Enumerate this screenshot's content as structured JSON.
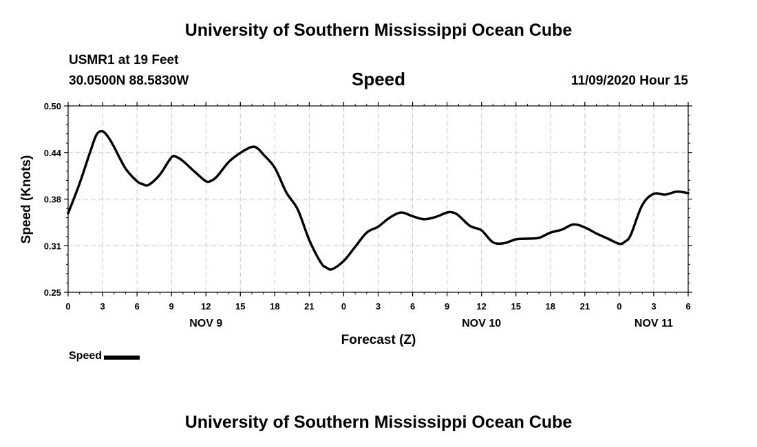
{
  "header": {
    "title": "University of Southern Mississippi Ocean Cube",
    "station": "USMR1 at 19 Feet",
    "coordinates": "30.0500N 88.5830W",
    "variable": "Speed",
    "datetime": "11/09/2020 Hour 15"
  },
  "footer": {
    "title": "University of Southern Mississippi Ocean Cube"
  },
  "chart_data": {
    "type": "line",
    "ylabel": "Speed (Knots)",
    "xlabel": "Forecast (Z)",
    "ylim": [
      0.25,
      0.5
    ],
    "y_ticks": [
      "0.50",
      "0.44",
      "0.38",
      "0.31",
      "0.25"
    ],
    "y_tick_values": [
      0.5,
      0.4375,
      0.375,
      0.3125,
      0.25
    ],
    "xlim": [
      0,
      54
    ],
    "x_ticks": [
      {
        "x": 0,
        "label": "0"
      },
      {
        "x": 3,
        "label": "3"
      },
      {
        "x": 6,
        "label": "6"
      },
      {
        "x": 9,
        "label": "9"
      },
      {
        "x": 12,
        "label": "12"
      },
      {
        "x": 15,
        "label": "15"
      },
      {
        "x": 18,
        "label": "18"
      },
      {
        "x": 21,
        "label": "21"
      },
      {
        "x": 24,
        "label": "0"
      },
      {
        "x": 27,
        "label": "3"
      },
      {
        "x": 30,
        "label": "6"
      },
      {
        "x": 33,
        "label": "9"
      },
      {
        "x": 36,
        "label": "12"
      },
      {
        "x": 39,
        "label": "15"
      },
      {
        "x": 42,
        "label": "18"
      },
      {
        "x": 45,
        "label": "21"
      },
      {
        "x": 48,
        "label": "0"
      },
      {
        "x": 51,
        "label": "3"
      },
      {
        "x": 54,
        "label": "6"
      }
    ],
    "day_labels": [
      {
        "x": 12,
        "label": "NOV 9"
      },
      {
        "x": 36,
        "label": "NOV 10"
      },
      {
        "x": 51,
        "label": "NOV 11"
      }
    ],
    "grid": true,
    "legend": {
      "placement": "bottom-left"
    },
    "series": [
      {
        "name": "Speed",
        "color": "#000000",
        "x": [
          0,
          1,
          2,
          2.5,
          3,
          3.5,
          4,
          5,
          6,
          6.5,
          7,
          8,
          9,
          9.5,
          10,
          11,
          12,
          12.5,
          13,
          14,
          15,
          16,
          16.5,
          17,
          18,
          19,
          20,
          21,
          22,
          22.5,
          23,
          24,
          25,
          26,
          27,
          28,
          29,
          30,
          31,
          32,
          33,
          33.5,
          34,
          35,
          36,
          37,
          38,
          39,
          40,
          41,
          42,
          43,
          44,
          45,
          46,
          47,
          48,
          48.5,
          49,
          50,
          51,
          52,
          53,
          54
        ],
        "values": [
          0.356,
          0.396,
          0.442,
          0.462,
          0.466,
          0.458,
          0.445,
          0.416,
          0.399,
          0.395,
          0.394,
          0.408,
          0.431,
          0.431,
          0.426,
          0.412,
          0.399,
          0.4,
          0.406,
          0.425,
          0.437,
          0.445,
          0.443,
          0.435,
          0.417,
          0.384,
          0.361,
          0.32,
          0.29,
          0.283,
          0.281,
          0.292,
          0.311,
          0.33,
          0.338,
          0.35,
          0.357,
          0.352,
          0.348,
          0.351,
          0.357,
          0.357,
          0.353,
          0.339,
          0.333,
          0.317,
          0.316,
          0.321,
          0.322,
          0.323,
          0.33,
          0.334,
          0.341,
          0.337,
          0.329,
          0.322,
          0.315,
          0.318,
          0.327,
          0.367,
          0.382,
          0.381,
          0.385,
          0.383
        ]
      }
    ]
  }
}
